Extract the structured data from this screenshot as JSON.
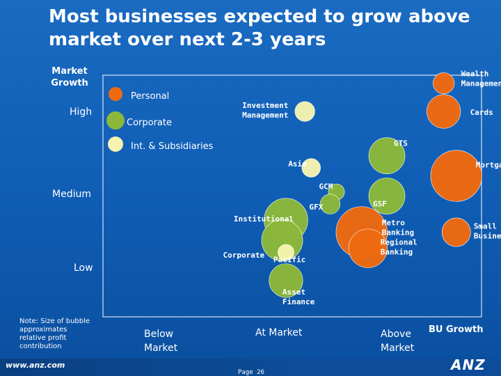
{
  "title": "Most businesses expected to grow above market over next 2-3 years",
  "axis": {
    "y_title": "Market Growth",
    "y_high": "High",
    "y_medium": "Medium",
    "y_low": "Low",
    "x_title": "BU Growth",
    "x_below": "Below Market",
    "x_at": "At Market",
    "x_above": "Above Market"
  },
  "legend": {
    "personal": "Personal",
    "corporate": "Corporate",
    "int": "Int. & Subsidiaries"
  },
  "note": "Note: Size of bubble approximates relative profit contribution",
  "footer": {
    "url": "www.anz.com",
    "page": "Page 26",
    "logo": "ANZ"
  },
  "colors": {
    "personal": "#f06a10",
    "corporate": "#8cb83a",
    "int": "#f6f3b0",
    "background": "#1263ba"
  },
  "chart_data": {
    "type": "scatter",
    "subtype": "bubble",
    "xlabel": "BU Growth",
    "ylabel": "Market Growth",
    "x_categories": [
      "Below Market",
      "At Market",
      "Above Market"
    ],
    "y_categories": [
      "Low",
      "Medium",
      "High"
    ],
    "series": [
      {
        "name": "Personal",
        "color": "#f06a10",
        "points": [
          {
            "label": "Wealth Management",
            "x": 3.2,
            "y": 3.4,
            "size": 0.4
          },
          {
            "label": "Cards",
            "x": 3.2,
            "y": 3.05,
            "size": 0.9
          },
          {
            "label": "Mortgages",
            "x": 3.3,
            "y": 2.25,
            "size": 1.6
          },
          {
            "label": "Small Business",
            "x": 3.3,
            "y": 1.55,
            "size": 0.7
          },
          {
            "label": "Metro Banking",
            "x": 2.55,
            "y": 1.55,
            "size": 1.6
          },
          {
            "label": "Regional Banking",
            "x": 2.6,
            "y": 1.35,
            "size": 1.1
          }
        ]
      },
      {
        "name": "Corporate",
        "color": "#8cb83a",
        "points": [
          {
            "label": "GTS",
            "x": 2.75,
            "y": 2.5,
            "size": 1.0
          },
          {
            "label": "GSF",
            "x": 2.75,
            "y": 2.0,
            "size": 1.0
          },
          {
            "label": "GCM",
            "x": 2.35,
            "y": 2.05,
            "size": 0.2
          },
          {
            "label": "GFX",
            "x": 2.3,
            "y": 1.9,
            "size": 0.35
          },
          {
            "label": "Institutional",
            "x": 1.95,
            "y": 1.7,
            "size": 1.3
          },
          {
            "label": "Corporate",
            "x": 1.92,
            "y": 1.45,
            "size": 1.2
          },
          {
            "label": "Asset Finance",
            "x": 1.95,
            "y": 0.95,
            "size": 0.9
          }
        ]
      },
      {
        "name": "Int. & Subsidiaries",
        "color": "#f6f3b0",
        "points": [
          {
            "label": "Investment Management",
            "x": 2.1,
            "y": 3.05,
            "size": 0.35
          },
          {
            "label": "Asia",
            "x": 2.15,
            "y": 2.35,
            "size": 0.3
          },
          {
            "label": "Pacific",
            "x": 1.95,
            "y": 1.3,
            "size": 0.2
          }
        ]
      }
    ]
  }
}
